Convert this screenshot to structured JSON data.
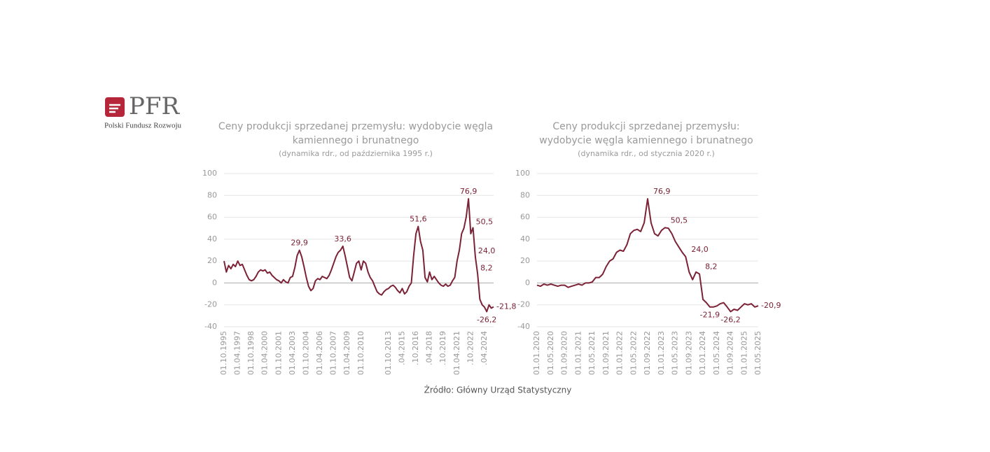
{
  "logo": {
    "mark": "PFR",
    "name": "Polski Fundusz Rozwoju"
  },
  "source": "Źródło: Główny Urząd Statystyczny",
  "chart_data": [
    {
      "type": "line",
      "title": [
        "Ceny produkcji sprzedanej przemysłu: wydobycie węgla",
        "kamiennego i brunatnego"
      ],
      "subtitle": "(dynamika rdr., od października 1995 r.)",
      "categories": [
        "01.10.1995",
        null,
        null,
        null,
        null,
        null,
        "01.04.1997",
        null,
        null,
        null,
        null,
        null,
        "01.10.1998",
        null,
        null,
        null,
        null,
        null,
        "01.04.2000",
        null,
        null,
        null,
        null,
        null,
        "01.10.2001",
        null,
        null,
        null,
        null,
        null,
        "01.04.2003",
        null,
        null,
        null,
        null,
        null,
        "01.10.2004",
        null,
        null,
        null,
        null,
        null,
        "01.04.2006",
        null,
        null,
        null,
        null,
        null,
        "01.10.2007",
        null,
        null,
        null,
        null,
        null,
        "01.04.2009",
        null,
        null,
        null,
        null,
        null,
        "01.10.2010",
        null,
        null,
        null,
        null,
        null,
        null,
        null,
        null,
        null,
        null,
        null,
        "01.10.2013",
        null,
        null,
        null,
        null,
        null,
        ".04.2015",
        null,
        null,
        null,
        null,
        null,
        ".10.2016",
        null,
        null,
        null,
        null,
        null,
        ".04.2018",
        null,
        null,
        null,
        null,
        null,
        ".10.2019",
        null,
        null,
        null,
        null,
        null,
        "01.04.2021",
        null,
        null,
        null,
        null,
        null,
        ".10.2022",
        null,
        null,
        null,
        null,
        null,
        ".04.2024",
        null,
        null,
        null,
        null
      ],
      "series": [
        {
          "name": "dynamika rdr.",
          "color": "#7b2236",
          "values": [
            20,
            10,
            16,
            13,
            17,
            15,
            20,
            16,
            17,
            12,
            7,
            3,
            2,
            3,
            6,
            10,
            12,
            11,
            12,
            9,
            10,
            7,
            5,
            3,
            2,
            0,
            3,
            1,
            0,
            5,
            6,
            14,
            25,
            29.9,
            24,
            15,
            5,
            -3,
            -7,
            -5,
            2,
            4,
            3,
            6,
            5,
            4,
            7,
            12,
            18,
            24,
            28,
            30,
            33.6,
            25,
            15,
            5,
            2,
            10,
            18,
            20,
            12,
            20,
            18,
            10,
            5,
            2,
            -3,
            -8,
            -10,
            -11,
            -8,
            -6,
            -5,
            -3,
            -2,
            -4,
            -7,
            -9,
            -5,
            -10,
            -8,
            -3,
            0,
            25,
            45,
            51.6,
            38,
            30,
            5,
            1,
            10,
            3,
            6,
            3,
            0,
            -2,
            -3,
            -1,
            -3,
            -2,
            2,
            5,
            20,
            30,
            45,
            50,
            60,
            76.9,
            45,
            50.5,
            24.0,
            8.2,
            -15,
            -20,
            -22,
            -26.2,
            -20,
            -23,
            -21.8
          ],
          "value_labels": [
            null,
            null,
            null,
            null,
            null,
            null,
            null,
            null,
            null,
            null,
            null,
            null,
            null,
            null,
            null,
            null,
            null,
            null,
            null,
            null,
            null,
            null,
            null,
            null,
            null,
            null,
            null,
            null,
            null,
            null,
            null,
            null,
            null,
            "29,9",
            null,
            null,
            null,
            null,
            null,
            null,
            null,
            null,
            null,
            null,
            null,
            null,
            null,
            null,
            null,
            null,
            null,
            null,
            "33,6",
            null,
            null,
            null,
            null,
            null,
            null,
            null,
            null,
            null,
            null,
            null,
            null,
            null,
            null,
            null,
            null,
            null,
            null,
            null,
            null,
            null,
            null,
            null,
            null,
            null,
            null,
            null,
            null,
            null,
            null,
            null,
            null,
            "51,6",
            null,
            null,
            null,
            null,
            null,
            null,
            null,
            null,
            null,
            null,
            null,
            null,
            null,
            null,
            null,
            null,
            null,
            null,
            null,
            null,
            null,
            "76,9",
            null,
            "50,5",
            "24,0",
            "8,2",
            null,
            null,
            null,
            "-26,2",
            null,
            null,
            "-21,8"
          ]
        }
      ],
      "ylim": [
        -40,
        100
      ],
      "yticks": [
        -40,
        -20,
        0,
        20,
        40,
        60,
        80,
        100
      ],
      "grid": true
    },
    {
      "type": "line",
      "title": [
        "Ceny produkcji sprzedanej przemysłu:",
        "wydobycie węgla kamiennego i brunatnego"
      ],
      "subtitle": "(dynamika rdr., od stycznia 2020 r.)",
      "categories": [
        "01.01.2020",
        null,
        null,
        null,
        "01.05.2020",
        null,
        null,
        null,
        "01.09.2020",
        null,
        null,
        null,
        "01.01.2021",
        null,
        null,
        null,
        "01.05.2021",
        null,
        null,
        null,
        "01.09.2021",
        null,
        null,
        null,
        "01.01.2022",
        null,
        null,
        null,
        "01.05.2022",
        null,
        null,
        null,
        "01.09.2022",
        null,
        null,
        null,
        "01.01.2023",
        null,
        null,
        null,
        "01.05.2023",
        null,
        null,
        null,
        "01.09.2023",
        null,
        null,
        null,
        "01.01.2024",
        null,
        null,
        null,
        "01.05.2024",
        null,
        null,
        null,
        "01.09.2024",
        null,
        null,
        null,
        "01.01.2025",
        null,
        null,
        null,
        "01.05.2025"
      ],
      "series": [
        {
          "name": "dynamika rdr.",
          "color": "#7b2236",
          "values": [
            -2,
            -3,
            -1,
            -2,
            -1,
            -2,
            -3,
            -2,
            -2,
            -4,
            -3,
            -2,
            -1,
            -2,
            0,
            0,
            1,
            5,
            5,
            8,
            15,
            20,
            22,
            28,
            30,
            29,
            35,
            45,
            48,
            49,
            47,
            55,
            76.9,
            55,
            45,
            43,
            48,
            50.5,
            50,
            45,
            38,
            33,
            28,
            24.0,
            10,
            3,
            10,
            8.2,
            -15,
            -18,
            -21.9,
            -22,
            -21,
            -19,
            -18,
            -22,
            -26.2,
            -24,
            -25,
            -22,
            -19,
            -20,
            -19,
            -22,
            -20.9
          ],
          "value_labels": [
            null,
            null,
            null,
            null,
            null,
            null,
            null,
            null,
            null,
            null,
            null,
            null,
            null,
            null,
            null,
            null,
            null,
            null,
            null,
            null,
            null,
            null,
            null,
            null,
            null,
            null,
            null,
            null,
            null,
            null,
            null,
            null,
            "76,9",
            null,
            null,
            null,
            null,
            "50,5",
            null,
            null,
            null,
            null,
            null,
            "24,0",
            null,
            null,
            null,
            "8,2",
            null,
            null,
            "-21,9",
            null,
            null,
            null,
            null,
            null,
            "-26,2",
            null,
            null,
            null,
            null,
            null,
            null,
            null,
            "-20,9"
          ]
        }
      ],
      "ylim": [
        -40,
        100
      ],
      "yticks": [
        -40,
        -20,
        0,
        20,
        40,
        60,
        80,
        100
      ],
      "grid": true
    }
  ]
}
